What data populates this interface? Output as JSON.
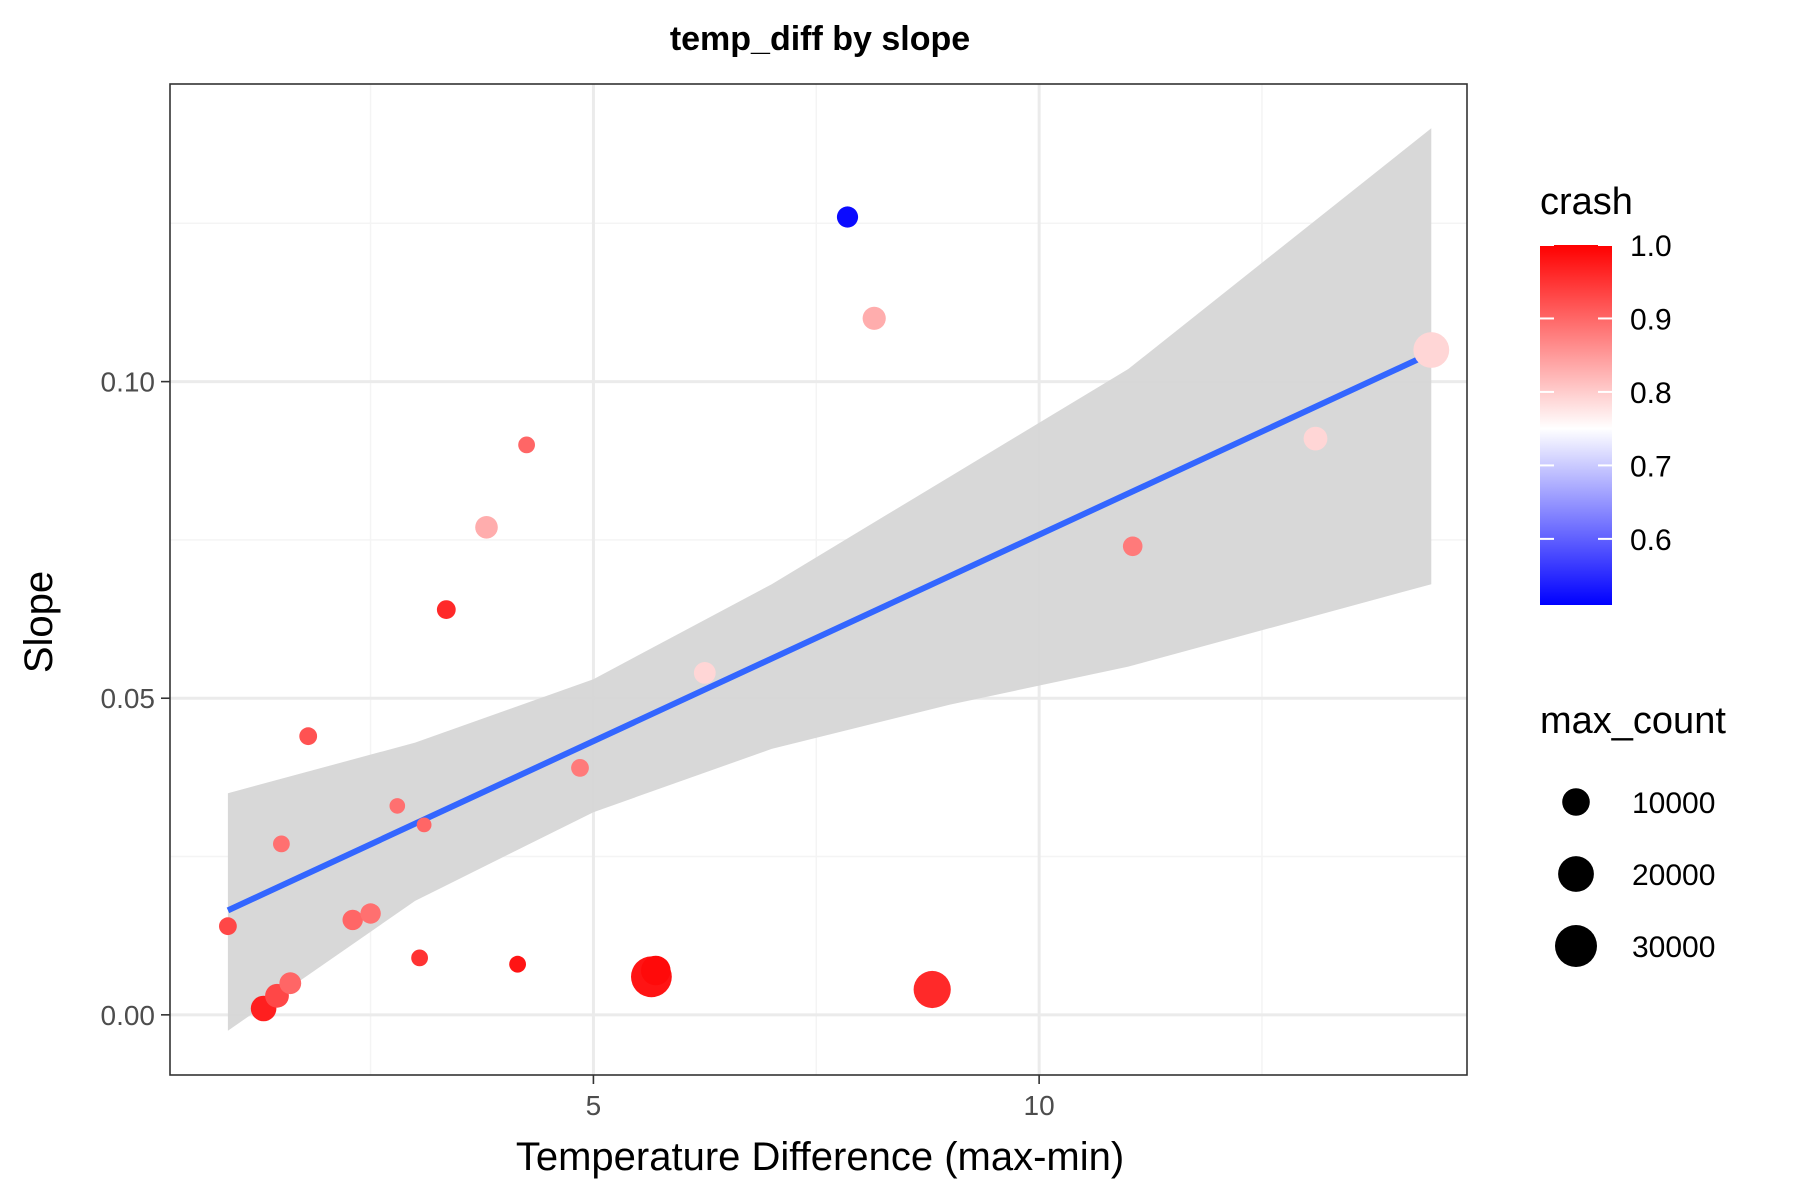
{
  "chart_data": {
    "type": "scatter",
    "title": "temp_diff by slope",
    "xlabel": "Temperature Difference (max-min)",
    "ylabel": "Slope",
    "xlim": [
      0.25,
      14.8
    ],
    "ylim": [
      -0.0095,
      0.147
    ],
    "x_ticks": [
      5,
      10
    ],
    "x_tick_labels": [
      "5",
      "10"
    ],
    "x_minor_ticks": [
      2.5,
      7.5,
      12.5
    ],
    "y_ticks": [
      0.0,
      0.05,
      0.1
    ],
    "y_tick_labels": [
      "0.00",
      "0.05",
      "0.10"
    ],
    "y_minor_ticks": [
      0.025,
      0.075,
      0.125
    ],
    "grid": true,
    "points": [
      {
        "x": 0.9,
        "y": 0.014,
        "crash": 0.93,
        "max_count": 2500
      },
      {
        "x": 1.3,
        "y": 0.001,
        "crash": 0.97,
        "max_count": 8000
      },
      {
        "x": 1.45,
        "y": 0.003,
        "crash": 0.93,
        "max_count": 6500
      },
      {
        "x": 1.5,
        "y": 0.027,
        "crash": 0.89,
        "max_count": 2000
      },
      {
        "x": 1.6,
        "y": 0.005,
        "crash": 0.9,
        "max_count": 5000
      },
      {
        "x": 1.8,
        "y": 0.044,
        "crash": 0.92,
        "max_count": 2500
      },
      {
        "x": 2.3,
        "y": 0.015,
        "crash": 0.9,
        "max_count": 4000
      },
      {
        "x": 2.5,
        "y": 0.016,
        "crash": 0.89,
        "max_count": 4000
      },
      {
        "x": 2.8,
        "y": 0.033,
        "crash": 0.89,
        "max_count": 1500
      },
      {
        "x": 3.05,
        "y": 0.009,
        "crash": 0.95,
        "max_count": 2000
      },
      {
        "x": 3.1,
        "y": 0.03,
        "crash": 0.9,
        "max_count": 1200
      },
      {
        "x": 3.35,
        "y": 0.064,
        "crash": 0.96,
        "max_count": 3000
      },
      {
        "x": 3.8,
        "y": 0.077,
        "crash": 0.83,
        "max_count": 5500
      },
      {
        "x": 4.15,
        "y": 0.008,
        "crash": 0.98,
        "max_count": 2000
      },
      {
        "x": 4.25,
        "y": 0.09,
        "crash": 0.9,
        "max_count": 2000
      },
      {
        "x": 4.85,
        "y": 0.039,
        "crash": 0.88,
        "max_count": 2500
      },
      {
        "x": 5.65,
        "y": 0.006,
        "crash": 0.98,
        "max_count": 28000
      },
      {
        "x": 5.7,
        "y": 0.007,
        "crash": 0.99,
        "max_count": 12000
      },
      {
        "x": 6.25,
        "y": 0.054,
        "crash": 0.79,
        "max_count": 5000
      },
      {
        "x": 7.85,
        "y": 0.126,
        "crash": 0.52,
        "max_count": 4500
      },
      {
        "x": 8.15,
        "y": 0.11,
        "crash": 0.83,
        "max_count": 6000
      },
      {
        "x": 8.8,
        "y": 0.004,
        "crash": 0.96,
        "max_count": 22000
      },
      {
        "x": 11.05,
        "y": 0.074,
        "crash": 0.88,
        "max_count": 3500
      },
      {
        "x": 13.1,
        "y": 0.091,
        "crash": 0.79,
        "max_count": 6500
      },
      {
        "x": 14.4,
        "y": 0.105,
        "crash": 0.79,
        "max_count": 20000
      }
    ],
    "smooth": {
      "method": "lm",
      "x_range": [
        0.9,
        14.4
      ],
      "line": [
        [
          0.9,
          0.0165
        ],
        [
          14.4,
          0.1045
        ]
      ],
      "band_upper": [
        [
          0.9,
          0.035
        ],
        [
          3.0,
          0.043
        ],
        [
          5.0,
          0.053
        ],
        [
          7.0,
          0.068
        ],
        [
          9.0,
          0.085
        ],
        [
          11.0,
          0.102
        ],
        [
          14.4,
          0.14
        ]
      ],
      "band_lower": [
        [
          0.9,
          -0.0025
        ],
        [
          3.0,
          0.018
        ],
        [
          5.0,
          0.032
        ],
        [
          7.0,
          0.042
        ],
        [
          9.0,
          0.049
        ],
        [
          11.0,
          0.055
        ],
        [
          14.4,
          0.068
        ]
      ]
    },
    "legend_crash": {
      "title": "crash",
      "ticks": [
        1.0,
        0.9,
        0.8,
        0.7,
        0.6
      ],
      "tick_labels": [
        "1.0",
        "0.9",
        "0.8",
        "0.7",
        "0.6"
      ],
      "range": [
        0.51,
        1.0
      ],
      "colors": {
        "low": "#0000ff",
        "mid": "#ffffff",
        "high": "#ff0000",
        "mid_value": 0.75
      }
    },
    "legend_size": {
      "title": "max_count",
      "values": [
        10000,
        20000,
        30000
      ],
      "labels": [
        "10000",
        "20000",
        "30000"
      ]
    },
    "legend_position": "right",
    "colors": {
      "smooth_line": "#3366ff",
      "smooth_band": "#d6d6d6",
      "grid_major": "#ebebeb",
      "grid_minor": "#f4f4f4",
      "panel_border": "#333333"
    }
  }
}
